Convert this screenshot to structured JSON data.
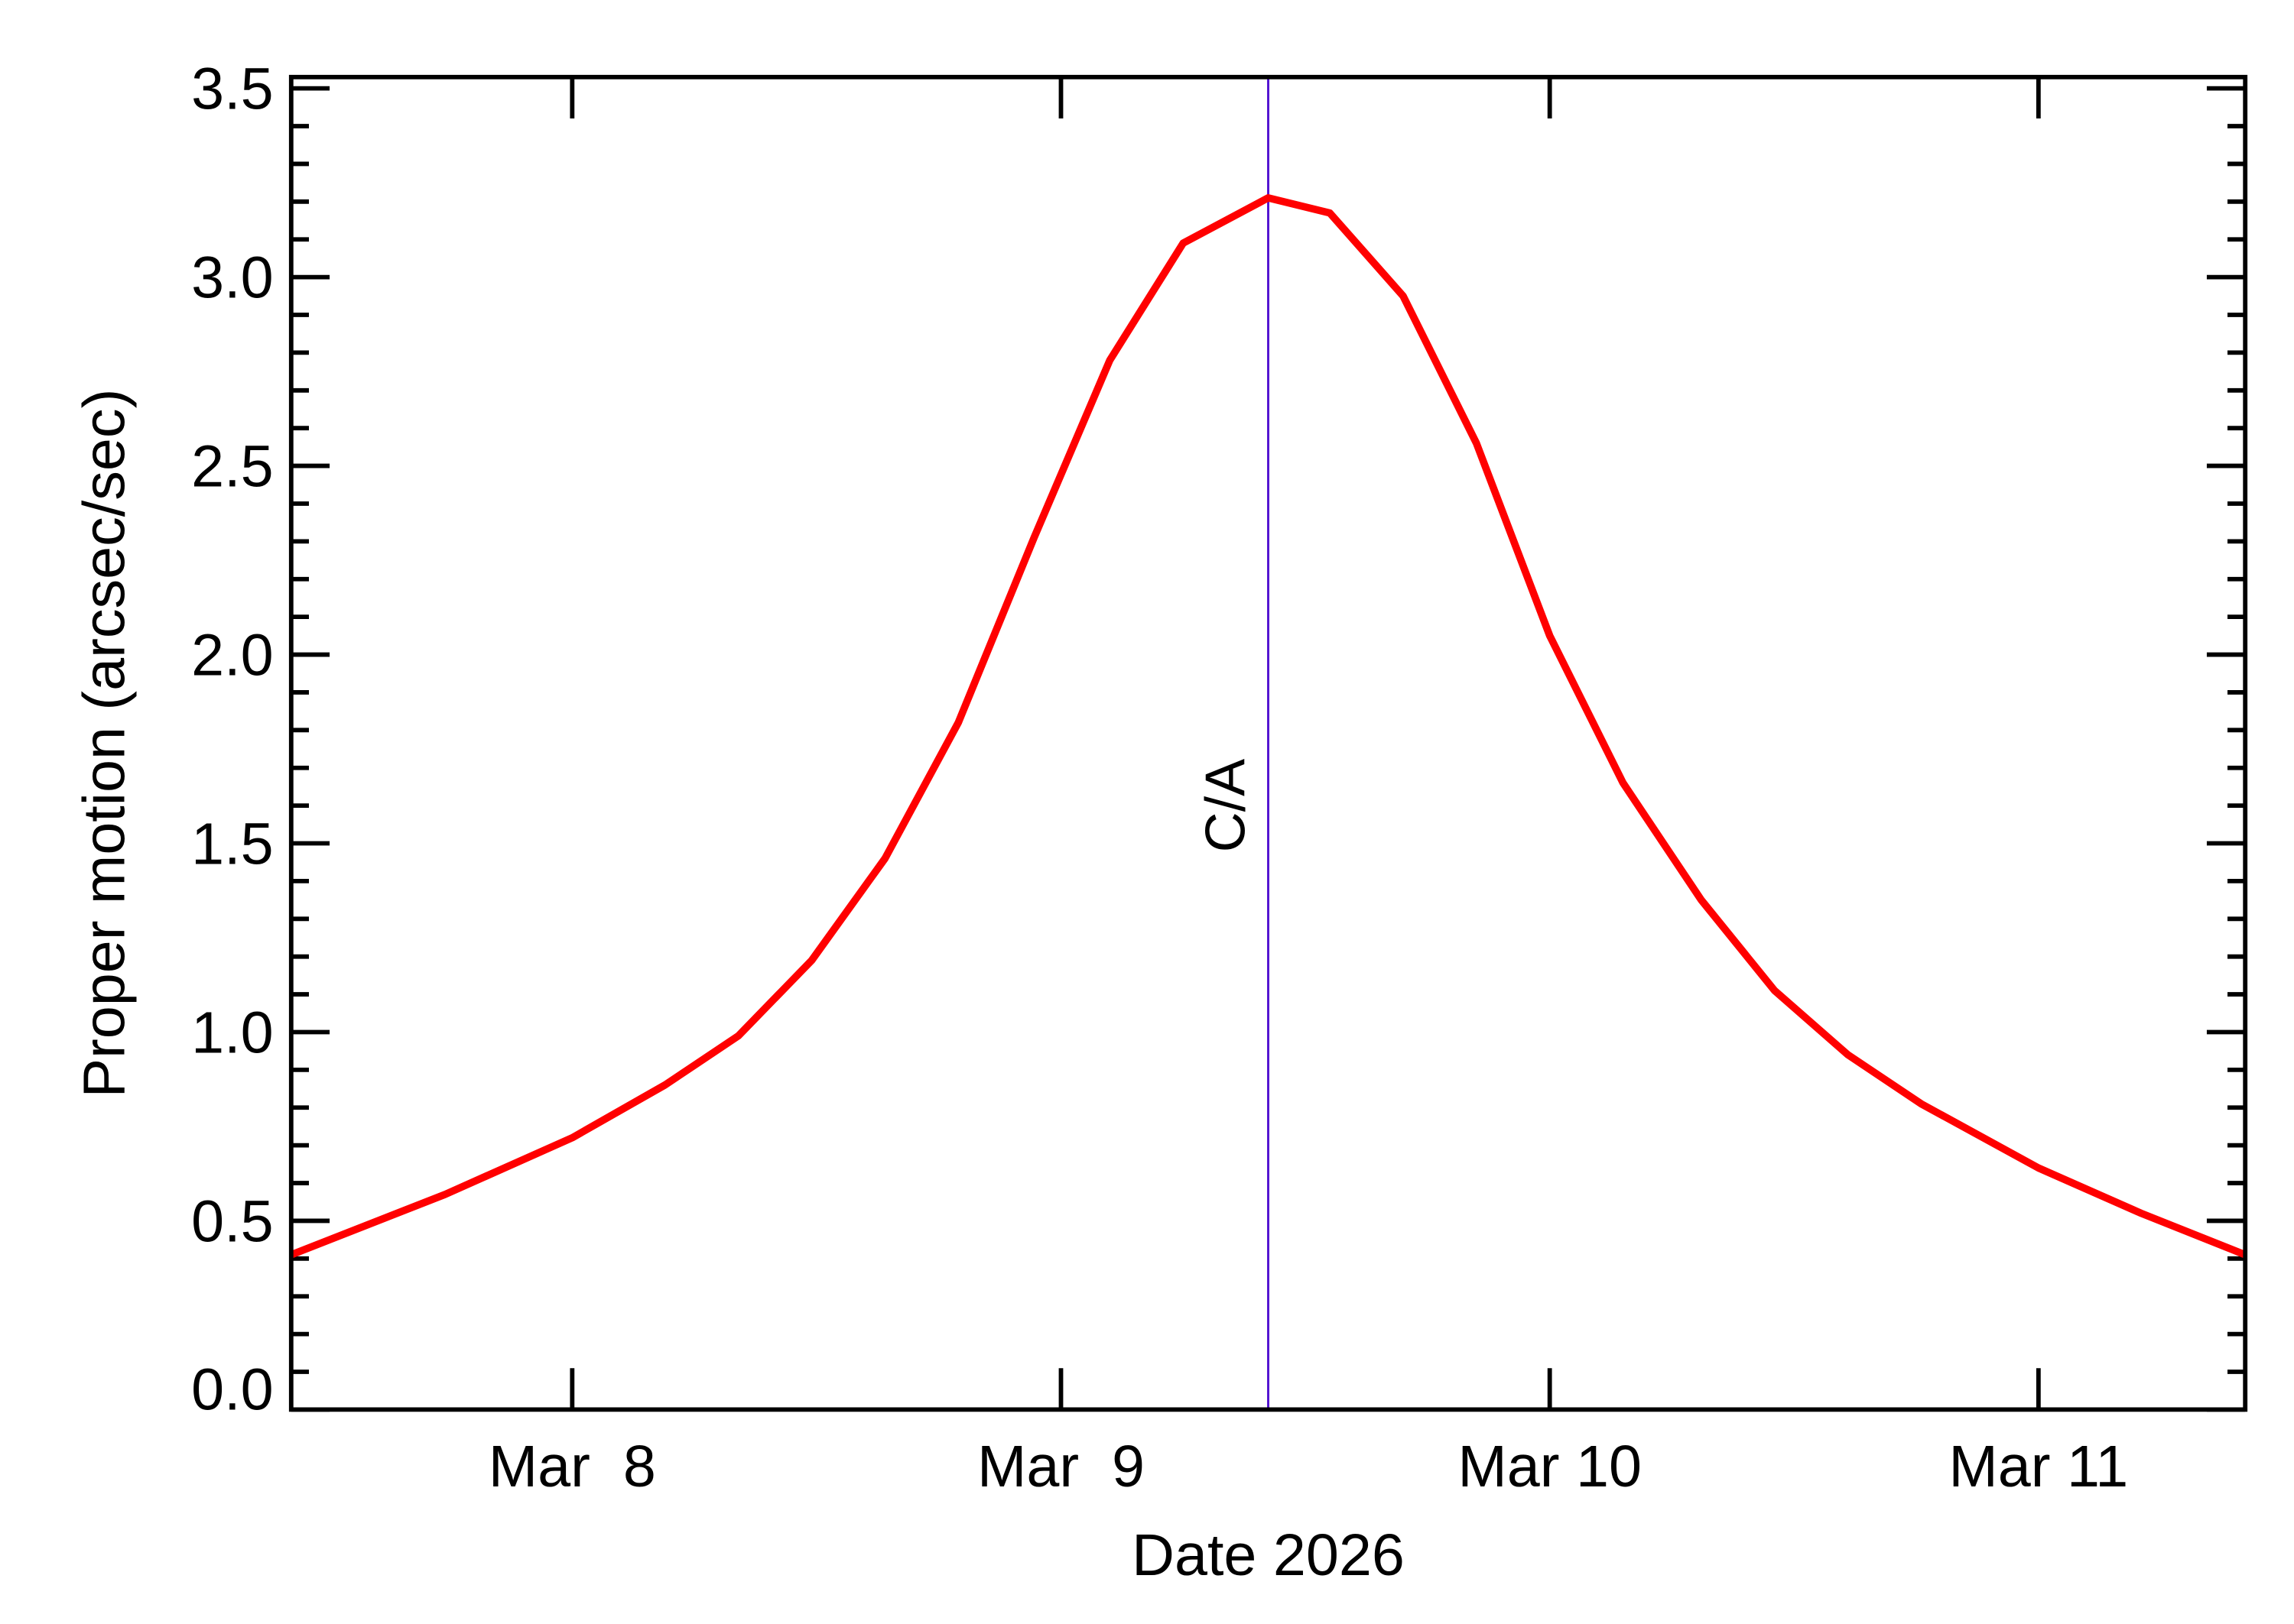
{
  "chart_data": {
    "type": "line",
    "xlabel": "Date 2026",
    "ylabel": "Proper motion (arcsec/sec)",
    "x": [
      7.425,
      7.74,
      8.0,
      8.19,
      8.34,
      8.49,
      8.64,
      8.79,
      8.945,
      9.1,
      9.25,
      9.424,
      9.55,
      9.7,
      9.85,
      10.0,
      10.15,
      10.31,
      10.46,
      10.61,
      10.76,
      11.0,
      11.21,
      11.423
    ],
    "values": [
      0.41,
      0.57,
      0.72,
      0.86,
      0.99,
      1.19,
      1.46,
      1.82,
      2.31,
      2.78,
      3.09,
      3.21,
      3.17,
      2.95,
      2.56,
      2.05,
      1.66,
      1.35,
      1.11,
      0.94,
      0.81,
      0.64,
      0.52,
      0.41
    ],
    "color": "#ff0000",
    "xlim": [
      7.425,
      11.423
    ],
    "xticks": [
      {
        "value": 8,
        "label": "Mar  8"
      },
      {
        "value": 9,
        "label": "Mar  9"
      },
      {
        "value": 10,
        "label": "Mar 10"
      },
      {
        "value": 11,
        "label": "Mar 11"
      }
    ],
    "ylim": [
      0,
      3.53
    ],
    "yticks": [
      {
        "value": 0,
        "label": "0.0"
      },
      {
        "value": 0.5,
        "label": "0.5"
      },
      {
        "value": 1,
        "label": "1.0"
      },
      {
        "value": 1.5,
        "label": "1.5"
      },
      {
        "value": 2,
        "label": "2.0"
      },
      {
        "value": 2.5,
        "label": "2.5"
      },
      {
        "value": 3,
        "label": "3.0"
      },
      {
        "value": 3.5,
        "label": "3.5"
      }
    ],
    "annotation": {
      "label": "C/A",
      "x": 9.424,
      "color": "#5010d0"
    }
  }
}
